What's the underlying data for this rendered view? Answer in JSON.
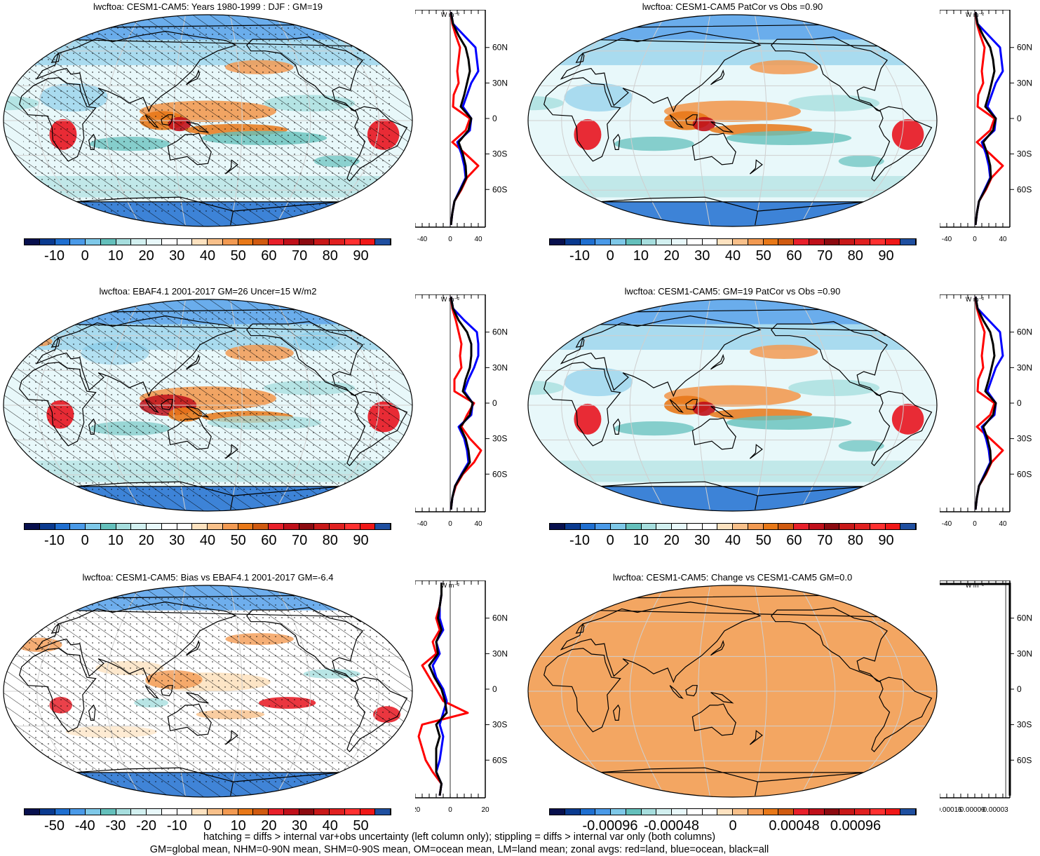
{
  "panels": [
    {
      "title": "lwcftoa: CESM1-CAM5: Years 1980-1999 : DJF : GM=19",
      "field": "mean",
      "hatch": true,
      "stipple": true,
      "colorbar": {
        "labels": [
          "-10",
          "0",
          "10",
          "20",
          "30",
          "40",
          "50",
          "60",
          "70",
          "80",
          "90"
        ],
        "palette": "full"
      },
      "zonal": {
        "unit": "W m-2",
        "xticks": [
          "-40",
          "0",
          "40"
        ],
        "yticks": [
          "60N",
          "30N",
          "0",
          "30S",
          "60S"
        ],
        "xlim": [
          -50,
          50
        ],
        "style": "mean"
      }
    },
    {
      "title": "lwcftoa: CESM1-CAM5 PatCor vs Obs =0.90",
      "field": "mean",
      "hatch": false,
      "stipple": false,
      "colorbar": {
        "labels": [
          "-10",
          "0",
          "10",
          "20",
          "30",
          "40",
          "50",
          "60",
          "70",
          "80",
          "90"
        ],
        "palette": "full"
      },
      "zonal": {
        "unit": "W m-2",
        "xticks": [
          "-40",
          "0",
          "40"
        ],
        "yticks": [
          "60N",
          "30N",
          "0",
          "30S",
          "60S"
        ],
        "xlim": [
          -50,
          50
        ],
        "style": "mean"
      }
    },
    {
      "title": "lwcftoa: EBAF4.1 2001-2017 GM=26 Uncer=15 W/m2",
      "field": "obs",
      "hatch": true,
      "stipple": true,
      "colorbar": {
        "labels": [
          "-10",
          "0",
          "10",
          "20",
          "30",
          "40",
          "50",
          "60",
          "70",
          "80",
          "90"
        ],
        "palette": "full"
      },
      "zonal": {
        "unit": "W m-2",
        "xticks": [
          "-40",
          "0",
          "40"
        ],
        "yticks": [
          "60N",
          "30N",
          "0",
          "30S",
          "60S"
        ],
        "xlim": [
          -50,
          50
        ],
        "style": "obs"
      }
    },
    {
      "title": "lwcftoa: CESM1-CAM5: GM=19 PatCor vs Obs =0.90",
      "field": "mean",
      "hatch": false,
      "stipple": false,
      "colorbar": {
        "labels": [
          "-10",
          "0",
          "10",
          "20",
          "30",
          "40",
          "50",
          "60",
          "70",
          "80",
          "90"
        ],
        "palette": "full"
      },
      "zonal": {
        "unit": "W m-2",
        "xticks": [
          "-40",
          "0",
          "40"
        ],
        "yticks": [
          "60N",
          "30N",
          "0",
          "30S",
          "60S"
        ],
        "xlim": [
          -50,
          50
        ],
        "style": "mean"
      }
    },
    {
      "title": "lwcftoa: CESM1-CAM5: Bias vs EBAF4.1 2001-2017 GM=-6.4",
      "field": "bias",
      "hatch": true,
      "stipple": true,
      "colorbar": {
        "labels": [
          "-50",
          "-40",
          "-30",
          "-20",
          "-10",
          "0",
          "10",
          "20",
          "30",
          "40",
          "50"
        ],
        "palette": "full"
      },
      "zonal": {
        "unit": "W m-2",
        "xticks": [
          "-20",
          "0",
          "20"
        ],
        "yticks": [
          "60N",
          "30N",
          "0",
          "30S",
          "60S"
        ],
        "xlim": [
          -20,
          20
        ],
        "style": "bias"
      }
    },
    {
      "title": "lwcftoa: CESM1-CAM5: Change vs CESM1-CAM5 GM=0.0",
      "field": "flat",
      "hatch": false,
      "stipple": false,
      "colorbar": {
        "labels": [
          "-0.00096",
          "-0.00048",
          "0",
          "0.00048",
          "0.00096"
        ],
        "palette": "full"
      },
      "zonal": {
        "unit": "W m-2",
        "xticks": [
          "-0.00015",
          "-0.00009",
          "-0.00003"
        ],
        "yticks": [
          "60N",
          "30N",
          "0",
          "30S",
          "60S"
        ],
        "xlim": [
          -0.00016,
          1e-05
        ],
        "style": "flat"
      }
    }
  ],
  "chart_data": {
    "type": "heatmap",
    "variable": "lwcftoa",
    "zonal_series": [
      "land",
      "ocean",
      "all"
    ],
    "latitudes": [
      -90,
      -80,
      -70,
      -60,
      -50,
      -40,
      -30,
      -20,
      -10,
      0,
      10,
      20,
      30,
      40,
      50,
      60,
      70,
      80,
      90
    ],
    "zonal_mean": {
      "land": [
        1,
        3,
        6,
        16,
        24,
        40,
        22,
        3,
        22,
        28,
        4,
        5,
        12,
        10,
        12,
        14,
        8,
        3,
        1
      ],
      "ocean": [
        1,
        3,
        6,
        14,
        22,
        20,
        16,
        10,
        28,
        30,
        18,
        24,
        30,
        40,
        38,
        36,
        20,
        4,
        1
      ],
      "all": [
        1,
        3,
        6,
        15,
        23,
        22,
        18,
        12,
        26,
        30,
        15,
        20,
        24,
        28,
        26,
        22,
        12,
        4,
        1
      ]
    },
    "zonal_obs": {
      "land": [
        1,
        3,
        8,
        18,
        34,
        44,
        28,
        16,
        24,
        34,
        6,
        6,
        16,
        14,
        16,
        12,
        8,
        3,
        1
      ],
      "ocean": [
        1,
        3,
        7,
        16,
        26,
        24,
        20,
        12,
        30,
        32,
        20,
        26,
        34,
        40,
        40,
        38,
        20,
        4,
        1
      ],
      "all": [
        1,
        3,
        7,
        17,
        28,
        26,
        22,
        14,
        28,
        32,
        18,
        22,
        28,
        30,
        30,
        24,
        12,
        4,
        1
      ]
    },
    "zonal_bias": {
      "land": [
        -6,
        -5,
        -10,
        -14,
        -16,
        -18,
        -16,
        10,
        -4,
        -8,
        -12,
        -16,
        -8,
        -10,
        -6,
        -8,
        -6,
        -5,
        -5
      ],
      "ocean": [
        -6,
        -5,
        -8,
        -6,
        -5,
        -4,
        -6,
        -4,
        -2,
        -4,
        -8,
        -10,
        -6,
        -8,
        -4,
        -6,
        -6,
        -5,
        -5
      ],
      "all": [
        -6,
        -5,
        -8,
        -8,
        -8,
        -6,
        -8,
        -2,
        -3,
        -5,
        -9,
        -12,
        -7,
        -8,
        -5,
        -7,
        -6,
        -5,
        -5
      ]
    },
    "zonal_change": {
      "all": [
        -1e-05,
        -1e-05,
        -1e-05,
        -1e-05,
        -1e-05,
        -1e-05,
        -1e-05,
        -1e-05,
        -1e-05,
        -1e-05,
        -1e-05,
        -1e-05,
        -1e-05,
        -1e-05,
        -1e-05,
        -1e-05,
        -1e-05,
        -1e-05,
        -1e-05
      ]
    }
  },
  "palette_colors": [
    "#08104e",
    "#0a3a8f",
    "#1f6fd0",
    "#4a9ae8",
    "#7ec8e8",
    "#64c0bc",
    "#a6dede",
    "#d2f0f0",
    "#e8f8fa",
    "#ffffff",
    "#ffffff",
    "#fde2c0",
    "#f8c08a",
    "#f29a52",
    "#e87818",
    "#d05a10",
    "#e8202a",
    "#c0101a",
    "#8c0a10",
    "#c81818",
    "#e02020",
    "#ff3030",
    "#f01818",
    "#1f4fa0"
  ],
  "footer": [
    "hatching = diffs > internal var+obs uncertainty (left column only); stippling = diffs > internal var only (both columns)",
    "GM=global mean, NHM=0-90N mean, SHM=0-90S mean, OM=ocean mean, LM=land mean; zonal avgs: red=land, blue=ocean, black=all"
  ]
}
